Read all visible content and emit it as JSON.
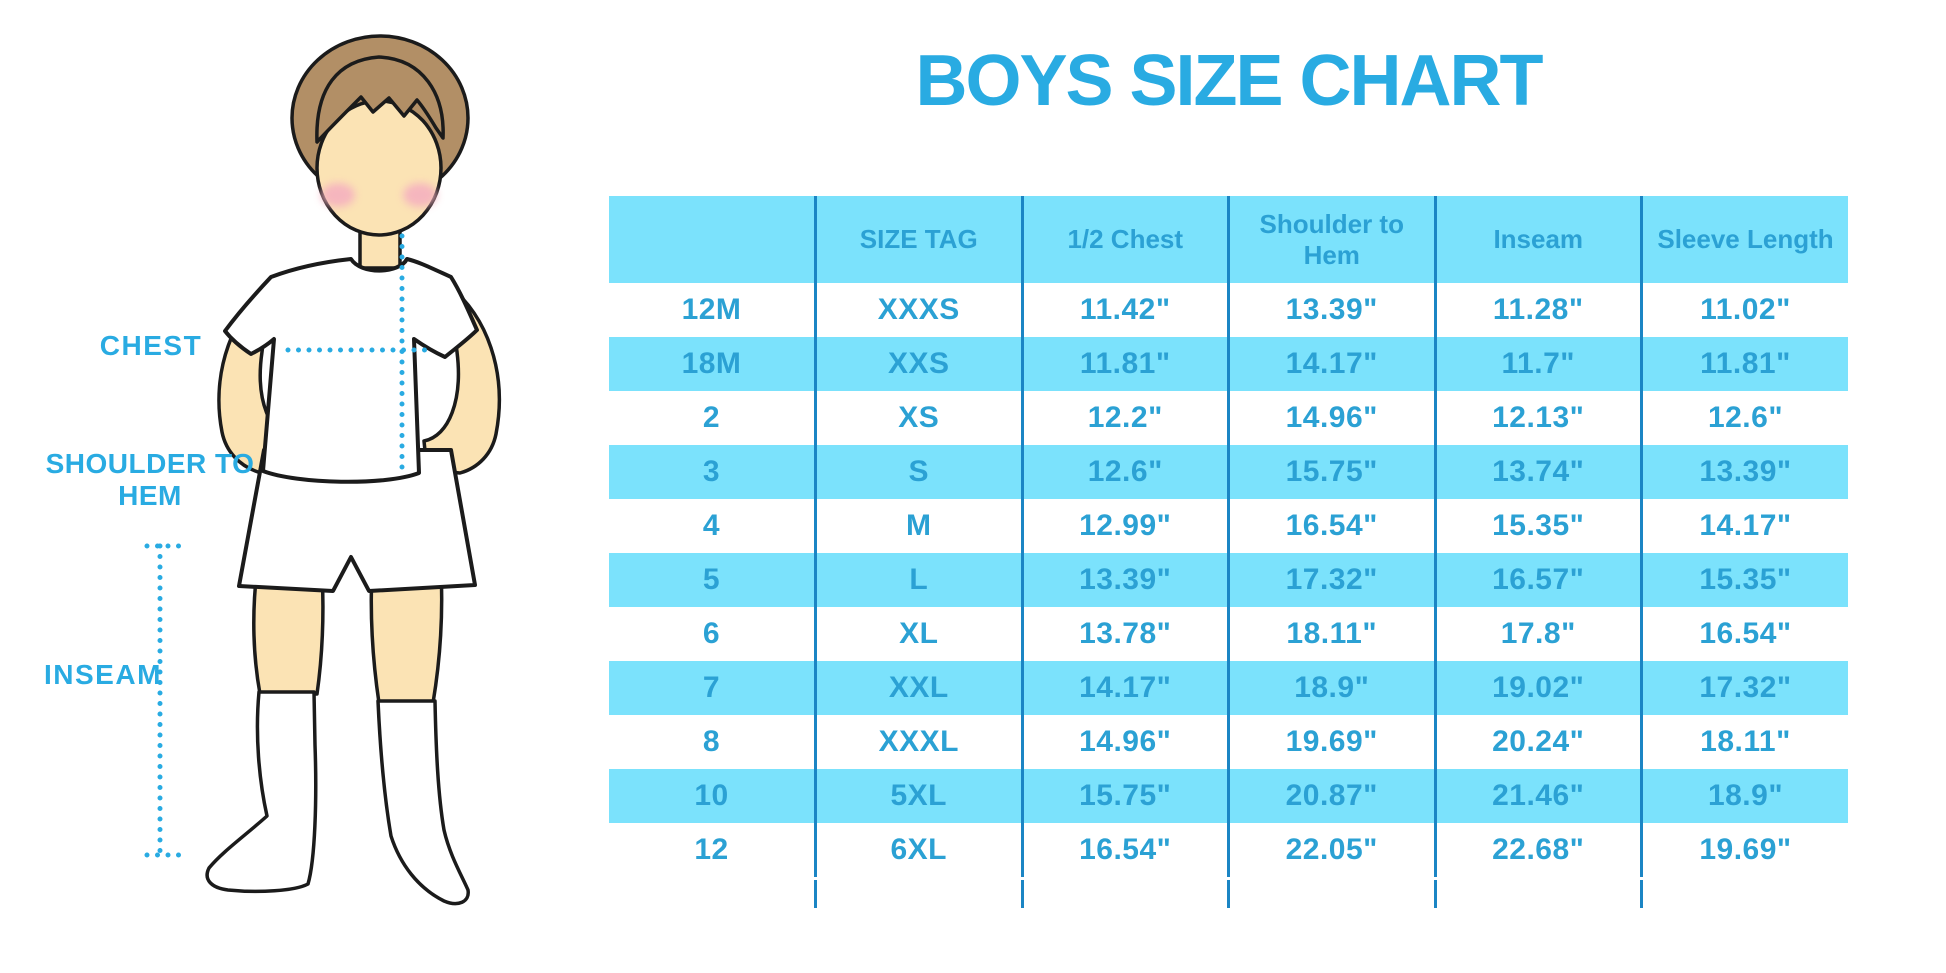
{
  "title": "BOYS SIZE CHART",
  "illustration_labels": {
    "chest": "CHEST",
    "shoulder_to_hem": "SHOULDER TO HEM",
    "inseam": "INSEAM"
  },
  "chart_data": {
    "type": "table",
    "title": "BOYS SIZE CHART",
    "headers": [
      "",
      "SIZE TAG",
      "1/2 Chest",
      "Shoulder to Hem",
      "Inseam",
      "Sleeve Length"
    ],
    "rows": [
      [
        "12M",
        "XXXS",
        "11.42\"",
        "13.39\"",
        "11.28\"",
        "11.02\""
      ],
      [
        "18M",
        "XXS",
        "11.81\"",
        "14.17\"",
        "11.7\"",
        "11.81\""
      ],
      [
        "2",
        "XS",
        "12.2\"",
        "14.96\"",
        "12.13\"",
        "12.6\""
      ],
      [
        "3",
        "S",
        "12.6\"",
        "15.75\"",
        "13.74\"",
        "13.39\""
      ],
      [
        "4",
        "M",
        "12.99\"",
        "16.54\"",
        "15.35\"",
        "14.17\""
      ],
      [
        "5",
        "L",
        "13.39\"",
        "17.32\"",
        "16.57\"",
        "15.35\""
      ],
      [
        "6",
        "XL",
        "13.78\"",
        "18.11\"",
        "17.8\"",
        "16.54\""
      ],
      [
        "7",
        "XXL",
        "14.17\"",
        "18.9\"",
        "19.02\"",
        "17.32\""
      ],
      [
        "8",
        "XXXL",
        "14.96\"",
        "19.69\"",
        "20.24\"",
        "18.11\""
      ],
      [
        "10",
        "5XL",
        "15.75\"",
        "20.87\"",
        "21.46\"",
        "18.9\""
      ],
      [
        "12",
        "6XL",
        "16.54\"",
        "22.05\"",
        "22.68\"",
        "19.69\""
      ]
    ],
    "row_striping": [
      "white",
      "cyan"
    ],
    "grid": "vertical-lines-only",
    "header_fill": "cyan"
  },
  "colors": {
    "accent_blue": "#29ABE2",
    "table_text_blue": "#2BA1D4",
    "grid_line_blue": "#1B85C4",
    "cell_cyan": "#7BE2FC",
    "skin": "#FBE3B4",
    "hair": "#B28F66",
    "blush": "#F5AFC0",
    "outline": "#1B1B1B",
    "background": "#FFFFFF"
  }
}
